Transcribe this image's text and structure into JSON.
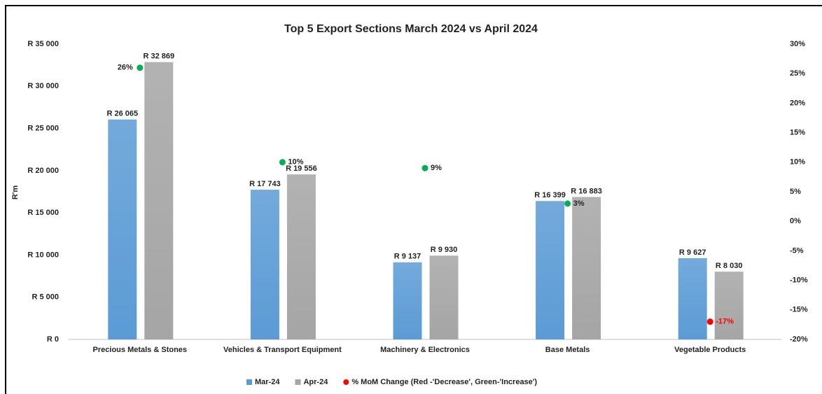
{
  "chart_data": {
    "type": "bar",
    "title": "Top 5 Export Sections  March 2024 vs April 2024",
    "ylabel": "R'm",
    "categories": [
      "Precious Metals & Stones",
      "Vehicles & Transport Equipment",
      "Machinery & Electronics",
      "Base Metals",
      "Vegetable Products"
    ],
    "series": [
      {
        "name": "Mar-24",
        "color": "#5b9bd5",
        "values": [
          26065,
          17743,
          9137,
          16399,
          9627
        ],
        "value_labels": [
          "R 26 065",
          "R 17 743",
          "R 9 137",
          "R 16 399",
          "R 9 627"
        ]
      },
      {
        "name": "Apr-24",
        "color": "#a5a5a5",
        "values": [
          32869,
          19556,
          9930,
          16883,
          8030
        ],
        "value_labels": [
          "R 32 869",
          "R 19 556",
          "R 9 930",
          "R 16 883",
          "R 8 030"
        ]
      },
      {
        "name": "% MoM Change (Red -'Decrease', Green-'Increase')",
        "type": "scatter",
        "axis": "y2",
        "color": "#ff0000",
        "colors": [
          "#00b050",
          "#00b050",
          "#00b050",
          "#00b050",
          "#ff0000"
        ],
        "values": [
          26,
          10,
          9,
          3,
          -17
        ],
        "value_labels": [
          "26%",
          "10%",
          "9%",
          "3%",
          "-17%"
        ]
      }
    ],
    "ylim": [
      0,
      35000
    ],
    "yticks": [
      {
        "value": 0,
        "label": "R 0"
      },
      {
        "value": 5000,
        "label": "R 5 000"
      },
      {
        "value": 10000,
        "label": "R 10 000"
      },
      {
        "value": 15000,
        "label": "R 15 000"
      },
      {
        "value": 20000,
        "label": "R 20 000"
      },
      {
        "value": 25000,
        "label": "R 25 000"
      },
      {
        "value": 30000,
        "label": "R 30 000"
      },
      {
        "value": 35000,
        "label": "R 35 000"
      }
    ],
    "y2lim": [
      -20,
      30
    ],
    "y2ticks": [
      {
        "value": -20,
        "label": "-20%"
      },
      {
        "value": -15,
        "label": "-15%"
      },
      {
        "value": -10,
        "label": "-10%"
      },
      {
        "value": -5,
        "label": "-5%"
      },
      {
        "value": 0,
        "label": "0%"
      },
      {
        "value": 5,
        "label": "5%"
      },
      {
        "value": 10,
        "label": "10%"
      },
      {
        "value": 15,
        "label": "15%"
      },
      {
        "value": 20,
        "label": "20%"
      },
      {
        "value": 25,
        "label": "25%"
      },
      {
        "value": 30,
        "label": "30%"
      }
    ],
    "legend": "bottom",
    "grid": false
  }
}
